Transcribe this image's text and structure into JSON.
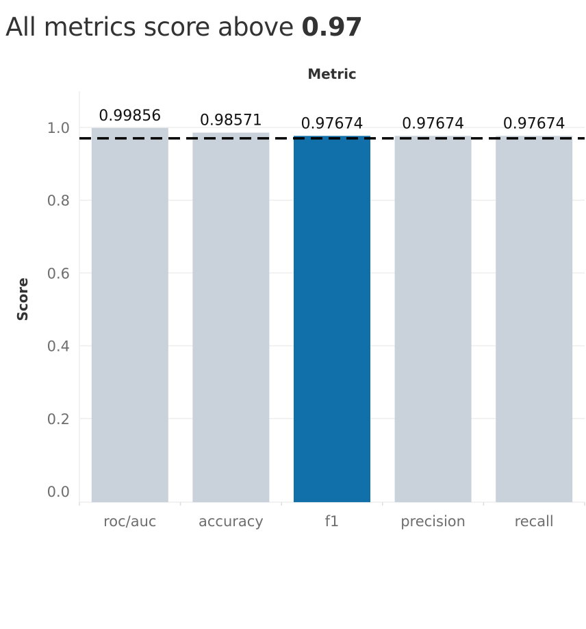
{
  "title": {
    "text": "All metrics score above ",
    "highlight": "0.97"
  },
  "chart_data": {
    "type": "bar",
    "title": "All metrics score above 0.97",
    "xlabel": "Metric",
    "ylabel": "Score",
    "categories": [
      "roc/auc",
      "accuracy",
      "f1",
      "precision",
      "recall"
    ],
    "values": [
      0.99856,
      0.98571,
      0.97674,
      0.97674,
      0.97674
    ],
    "value_labels": [
      "0.99856",
      "0.98571",
      "0.97674",
      "0.97674",
      "0.97674"
    ],
    "ylim": [
      -0.03,
      1.1
    ],
    "yticks": [
      "0.0",
      "0.2",
      "0.4",
      "0.6",
      "0.8",
      "1.0"
    ],
    "ytick_values": [
      0,
      0.2,
      0.4,
      0.6,
      0.8,
      1.0
    ],
    "reference_line": 0.97,
    "highlighted_category": "f1",
    "xaxis_position": "top",
    "grid": true,
    "colors": {
      "bar": "#c9d1da",
      "highlight": "#1170aa",
      "reference_line": "#000000",
      "grid": "#eeeeee"
    }
  }
}
